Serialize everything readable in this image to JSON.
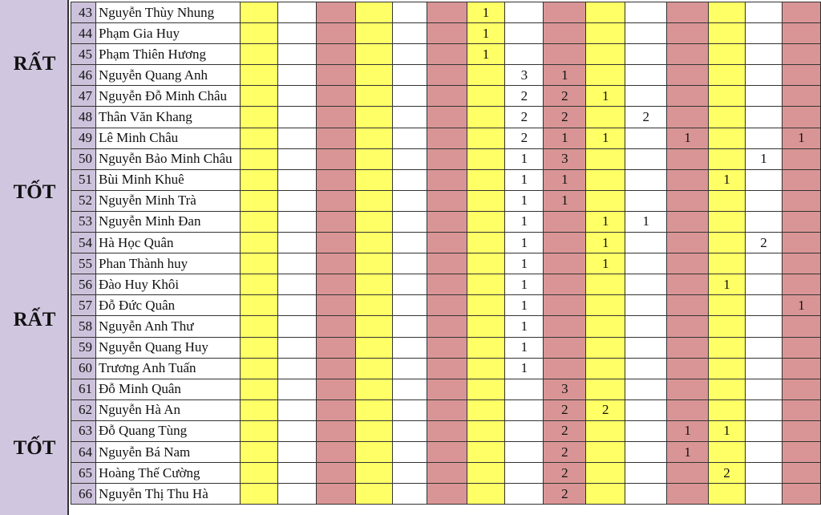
{
  "group_labels": [
    "RẤT",
    "TỐT",
    "RẤT",
    "TỐT"
  ],
  "colors": {
    "yellow": "#ffff66",
    "pink": "#d99595",
    "white": "#ffffff",
    "purple": "#d1c6e0"
  },
  "column_colors": [
    "yellow",
    "white",
    "pink",
    "yellow",
    "white",
    "pink",
    "yellow",
    "white",
    "pink",
    "yellow",
    "white",
    "pink",
    "yellow",
    "white",
    "pink"
  ],
  "rows": [
    {
      "no": "43",
      "name": "Nguyễn Thùy Nhung",
      "values": [
        "",
        "",
        "",
        "",
        "",
        "",
        "1",
        "",
        "",
        "",
        "",
        "",
        "",
        "",
        ""
      ]
    },
    {
      "no": "44",
      "name": "Phạm Gia Huy",
      "values": [
        "",
        "",
        "",
        "",
        "",
        "",
        "1",
        "",
        "",
        "",
        "",
        "",
        "",
        "",
        ""
      ]
    },
    {
      "no": "45",
      "name": "Phạm Thiên Hương",
      "values": [
        "",
        "",
        "",
        "",
        "",
        "",
        "1",
        "",
        "",
        "",
        "",
        "",
        "",
        "",
        ""
      ]
    },
    {
      "no": "46",
      "name": "Nguyễn Quang Anh",
      "values": [
        "",
        "",
        "",
        "",
        "",
        "",
        "",
        "3",
        "1",
        "",
        "",
        "",
        "",
        "",
        ""
      ]
    },
    {
      "no": "47",
      "name": "Nguyễn Đỗ Minh Châu",
      "values": [
        "",
        "",
        "",
        "",
        "",
        "",
        "",
        "2",
        "2",
        "1",
        "",
        "",
        "",
        "",
        ""
      ]
    },
    {
      "no": "48",
      "name": "Thân Văn Khang",
      "values": [
        "",
        "",
        "",
        "",
        "",
        "",
        "",
        "2",
        "2",
        "",
        "2",
        "",
        "",
        "",
        ""
      ]
    },
    {
      "no": "49",
      "name": "Lê Minh Châu",
      "values": [
        "",
        "",
        "",
        "",
        "",
        "",
        "",
        "2",
        "1",
        "1",
        "",
        "1",
        "",
        "",
        "1"
      ]
    },
    {
      "no": "50",
      "name": "Nguyễn Bảo Minh Châu",
      "values": [
        "",
        "",
        "",
        "",
        "",
        "",
        "",
        "1",
        "3",
        "",
        "",
        "",
        "",
        "1",
        ""
      ]
    },
    {
      "no": "51",
      "name": "Bùi Minh Khuê",
      "values": [
        "",
        "",
        "",
        "",
        "",
        "",
        "",
        "1",
        "1",
        "",
        "",
        "",
        "1",
        "",
        ""
      ]
    },
    {
      "no": "52",
      "name": "Nguyễn Minh Trà",
      "values": [
        "",
        "",
        "",
        "",
        "",
        "",
        "",
        "1",
        "1",
        "",
        "",
        "",
        "",
        "",
        ""
      ]
    },
    {
      "no": "53",
      "name": "Nguyễn Minh Đan",
      "values": [
        "",
        "",
        "",
        "",
        "",
        "",
        "",
        "1",
        "",
        "1",
        "1",
        "",
        "",
        "",
        ""
      ]
    },
    {
      "no": "54",
      "name": "Hà Học Quân",
      "values": [
        "",
        "",
        "",
        "",
        "",
        "",
        "",
        "1",
        "",
        "1",
        "",
        "",
        "",
        "2",
        ""
      ]
    },
    {
      "no": "55",
      "name": "Phan Thành huy",
      "values": [
        "",
        "",
        "",
        "",
        "",
        "",
        "",
        "1",
        "",
        "1",
        "",
        "",
        "",
        "",
        ""
      ]
    },
    {
      "no": "56",
      "name": "Đào Huy Khôi",
      "values": [
        "",
        "",
        "",
        "",
        "",
        "",
        "",
        "1",
        "",
        "",
        "",
        "",
        "1",
        "",
        ""
      ]
    },
    {
      "no": "57",
      "name": "Đỗ Đức Quân",
      "values": [
        "",
        "",
        "",
        "",
        "",
        "",
        "",
        "1",
        "",
        "",
        "",
        "",
        "",
        "",
        "1"
      ]
    },
    {
      "no": "58",
      "name": "Nguyễn Anh Thư",
      "values": [
        "",
        "",
        "",
        "",
        "",
        "",
        "",
        "1",
        "",
        "",
        "",
        "",
        "",
        "",
        ""
      ]
    },
    {
      "no": "59",
      "name": "Nguyễn Quang Huy",
      "values": [
        "",
        "",
        "",
        "",
        "",
        "",
        "",
        "1",
        "",
        "",
        "",
        "",
        "",
        "",
        ""
      ]
    },
    {
      "no": "60",
      "name": "Trương Anh Tuấn",
      "values": [
        "",
        "",
        "",
        "",
        "",
        "",
        "",
        "1",
        "",
        "",
        "",
        "",
        "",
        "",
        ""
      ]
    },
    {
      "no": "61",
      "name": "Đỗ Minh Quân",
      "values": [
        "",
        "",
        "",
        "",
        "",
        "",
        "",
        "",
        "3",
        "",
        "",
        "",
        "",
        "",
        ""
      ]
    },
    {
      "no": "62",
      "name": "Nguyễn Hà An",
      "values": [
        "",
        "",
        "",
        "",
        "",
        "",
        "",
        "",
        "2",
        "2",
        "",
        "",
        "",
        "",
        ""
      ]
    },
    {
      "no": "63",
      "name": "Đỗ Quang Tùng",
      "values": [
        "",
        "",
        "",
        "",
        "",
        "",
        "",
        "",
        "2",
        "",
        "",
        "1",
        "1",
        "",
        ""
      ]
    },
    {
      "no": "64",
      "name": "Nguyễn Bá Nam",
      "values": [
        "",
        "",
        "",
        "",
        "",
        "",
        "",
        "",
        "2",
        "",
        "",
        "1",
        "",
        "",
        ""
      ]
    },
    {
      "no": "65",
      "name": "Hoàng Thế Cường",
      "values": [
        "",
        "",
        "",
        "",
        "",
        "",
        "",
        "",
        "2",
        "",
        "",
        "",
        "2",
        "",
        ""
      ]
    },
    {
      "no": "66",
      "name": "Nguyễn Thị Thu Hà",
      "values": [
        "",
        "",
        "",
        "",
        "",
        "",
        "",
        "",
        "2",
        "",
        "",
        "",
        "",
        "",
        ""
      ]
    }
  ]
}
